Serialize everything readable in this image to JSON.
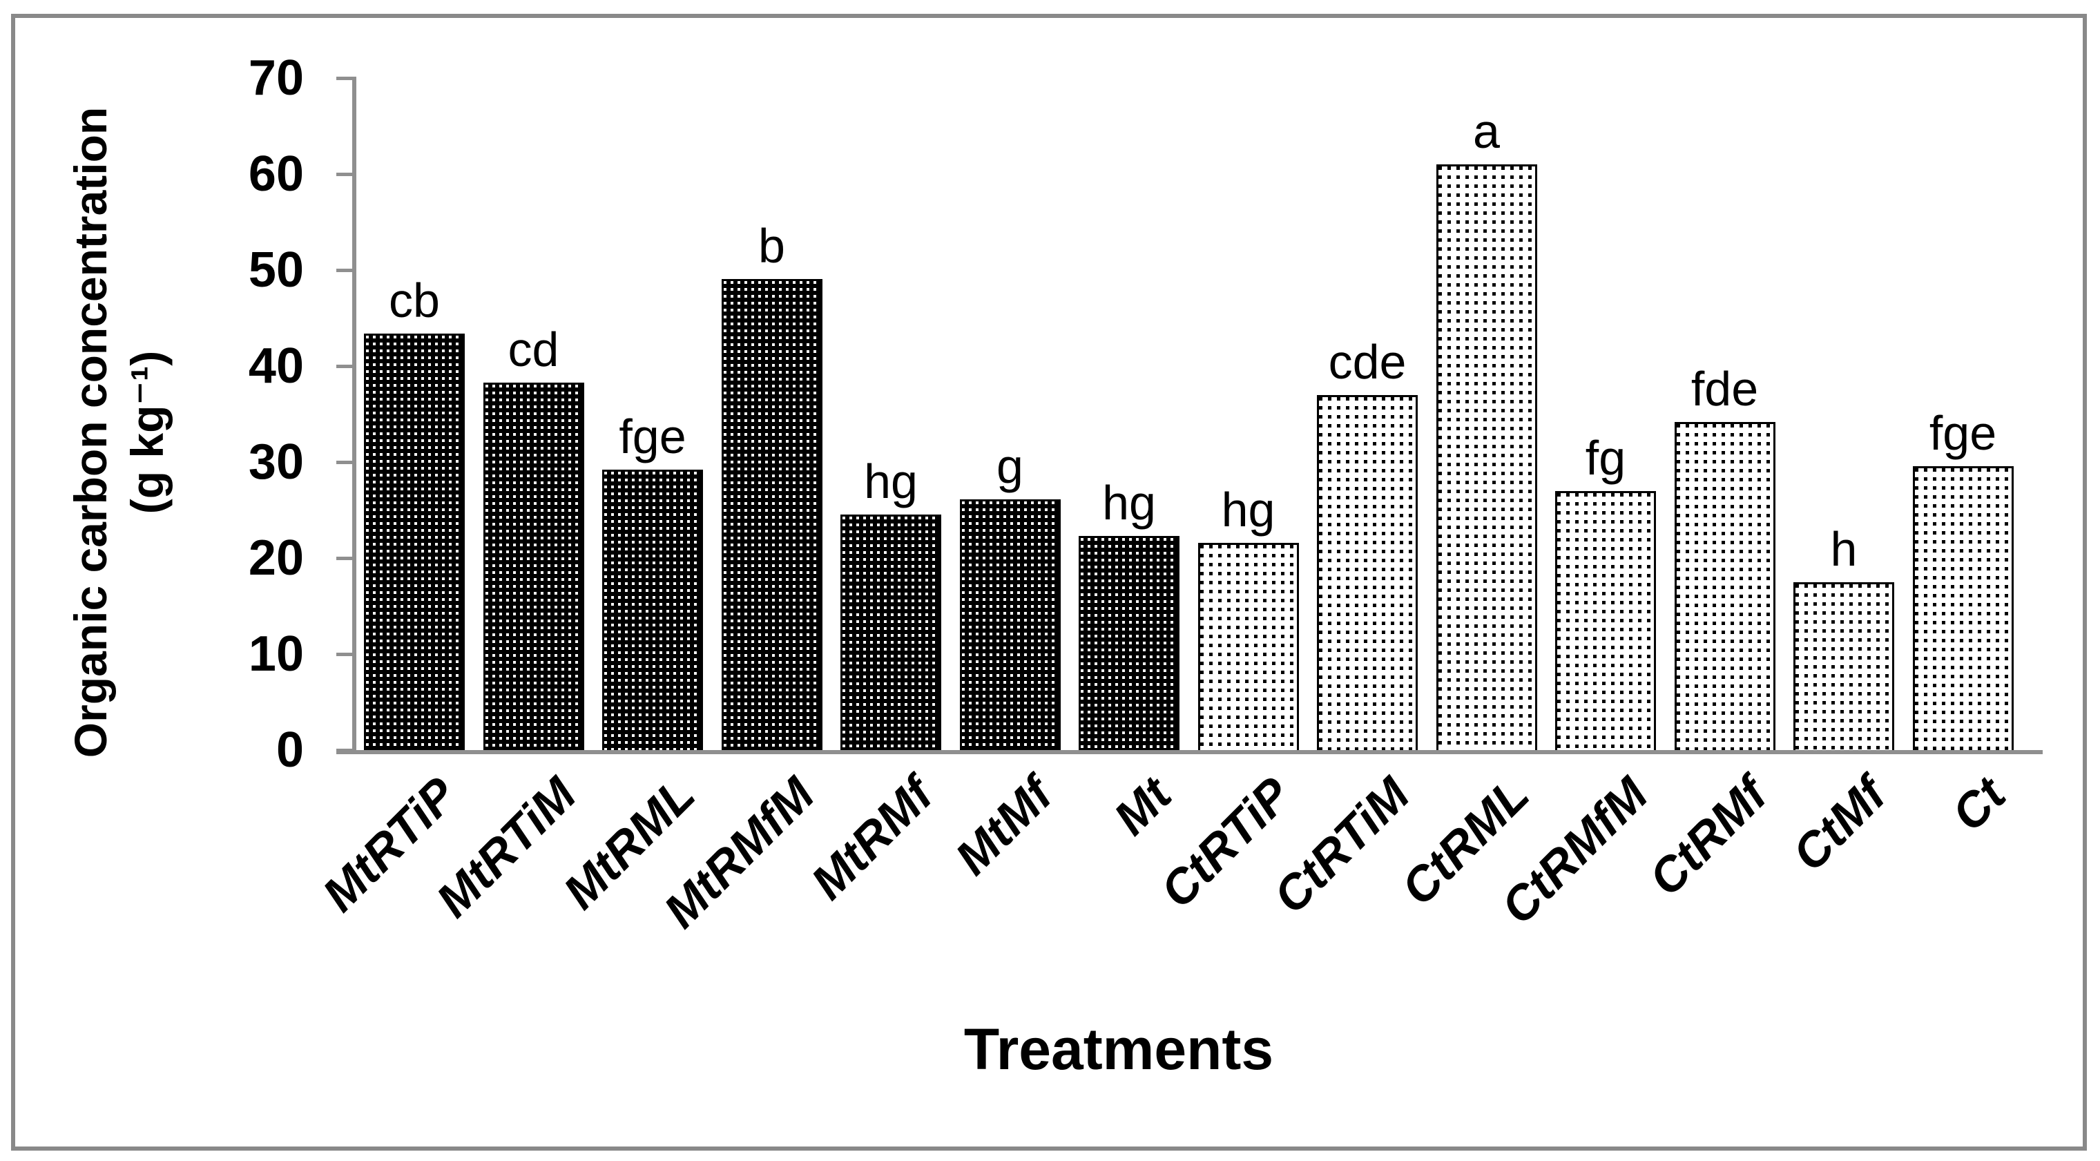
{
  "figure": {
    "background": "#ffffff",
    "border_color": "#898989",
    "axis_color": "#8f8f8f",
    "text_color": "#000000"
  },
  "chart_data": {
    "type": "bar",
    "title": "",
    "xlabel": "Treatments",
    "ylabel": "Organic carbon concentration (g kg⁻¹)",
    "ylabel_lines": [
      "Organic carbon concentration",
      "(g kg⁻¹)"
    ],
    "ylim": [
      0,
      70
    ],
    "yticks": [
      0,
      10,
      20,
      30,
      40,
      50,
      60,
      70
    ],
    "grid": false,
    "legend_position": "none",
    "categories": [
      "MtRTiP",
      "MtRTiM",
      "MtRML",
      "MtRMfM",
      "MtRMf",
      "MtMf",
      "Mt",
      "CtRTiP",
      "CtRTiM",
      "CtRML",
      "CtRMfM",
      "CtRMf",
      "CtMf",
      "Ct"
    ],
    "values": [
      43.4,
      38.3,
      29.2,
      49.1,
      24.5,
      26.1,
      22.3,
      21.6,
      37.0,
      61.0,
      27.0,
      34.2,
      17.5,
      29.6
    ],
    "significance_letters": [
      "cb",
      "cd",
      "fge",
      "b",
      "hg",
      "g",
      "hg",
      "hg",
      "cde",
      "a",
      "fg",
      "fde",
      "h",
      "fge"
    ],
    "bar_patterns": [
      "dark",
      "dark",
      "dark",
      "dark",
      "dark",
      "dark",
      "dark",
      "light",
      "light",
      "light",
      "light",
      "light",
      "light",
      "light"
    ]
  }
}
